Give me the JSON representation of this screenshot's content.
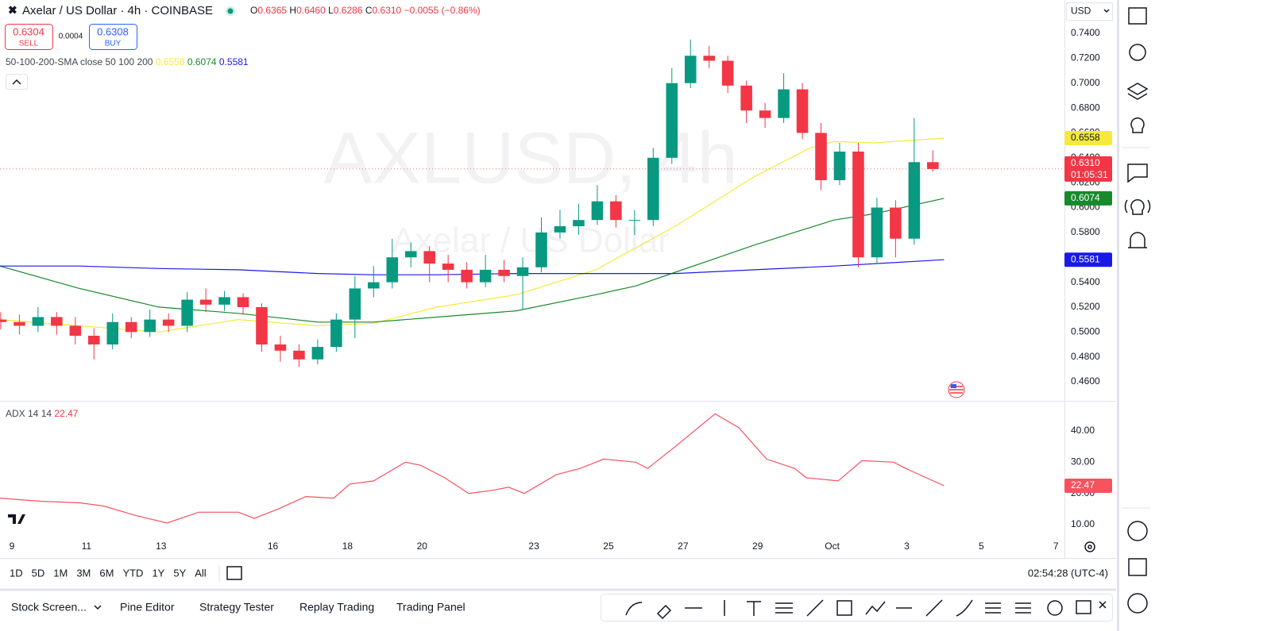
{
  "header": {
    "symbol": "Axelar / US Dollar · 4h · COINBASE",
    "ohlc": [
      {
        "key": "O",
        "value": "0.6365"
      },
      {
        "key": "H",
        "value": "0.6460"
      },
      {
        "key": "L",
        "value": "0.6286"
      },
      {
        "key": "C",
        "value": "0.6310"
      }
    ],
    "change": "−0.0055 (−0.86%)"
  },
  "trade": {
    "sell_price": "0.6304",
    "sell": "SELL",
    "spread": "0.0004",
    "buy_price": "0.6308",
    "buy": "BUY"
  },
  "currency": "USD",
  "watermark": {
    "ticker": "AXLUSD, 4h",
    "name": "Axelar / US Dollar"
  },
  "chart_data": [
    {
      "type": "candlestick",
      "x": [
        -0.3,
        0.2,
        0.7,
        1.2,
        1.7,
        2.2,
        2.7,
        3.2,
        3.7,
        4.2,
        4.7,
        5.2,
        5.7,
        6.2,
        6.7,
        7.2,
        7.7,
        8.2,
        8.7,
        9.2,
        9.7,
        10.2,
        10.7,
        11.2,
        11.7,
        12.2,
        12.7,
        13.2,
        13.7,
        14.2,
        14.7,
        15.2,
        15.7,
        16.2,
        16.7,
        17.2,
        17.7,
        18.2,
        18.7,
        19.2,
        19.7,
        20.2,
        20.7,
        21.2,
        21.7,
        22.2,
        22.7,
        23.2,
        23.7,
        24.2,
        24.7
      ],
      "open": [
        0.51,
        0.508,
        0.505,
        0.512,
        0.505,
        0.497,
        0.49,
        0.508,
        0.5,
        0.51,
        0.505,
        0.526,
        0.522,
        0.528,
        0.52,
        0.49,
        0.485,
        0.478,
        0.488,
        0.51,
        0.535,
        0.54,
        0.56,
        0.565,
        0.555,
        0.55,
        0.54,
        0.55,
        0.545,
        0.552,
        0.58,
        0.585,
        0.59,
        0.605,
        0.59,
        0.59,
        0.64,
        0.7,
        0.722,
        0.718,
        0.698,
        0.678,
        0.672,
        0.695,
        0.66,
        0.622,
        0.645,
        0.56,
        0.6,
        0.575,
        0.6365
      ],
      "high": [
        0.516,
        0.514,
        0.52,
        0.516,
        0.512,
        0.503,
        0.515,
        0.512,
        0.518,
        0.515,
        0.532,
        0.535,
        0.533,
        0.531,
        0.523,
        0.497,
        0.49,
        0.494,
        0.515,
        0.545,
        0.553,
        0.575,
        0.572,
        0.569,
        0.562,
        0.556,
        0.562,
        0.558,
        0.56,
        0.592,
        0.598,
        0.603,
        0.618,
        0.61,
        0.598,
        0.648,
        0.712,
        0.735,
        0.73,
        0.722,
        0.702,
        0.684,
        0.708,
        0.7,
        0.668,
        0.652,
        0.652,
        0.608,
        0.606,
        0.672,
        0.646
      ],
      "low": [
        0.502,
        0.498,
        0.5,
        0.498,
        0.49,
        0.478,
        0.486,
        0.495,
        0.496,
        0.5,
        0.5,
        0.516,
        0.517,
        0.514,
        0.484,
        0.476,
        0.472,
        0.474,
        0.484,
        0.495,
        0.528,
        0.535,
        0.552,
        0.54,
        0.54,
        0.535,
        0.536,
        0.54,
        0.518,
        0.548,
        0.575,
        0.578,
        0.586,
        0.584,
        0.578,
        0.585,
        0.635,
        0.696,
        0.712,
        0.692,
        0.668,
        0.664,
        0.668,
        0.655,
        0.614,
        0.618,
        0.552,
        0.555,
        0.56,
        0.57,
        0.6286
      ],
      "close": [
        0.508,
        0.505,
        0.512,
        0.505,
        0.497,
        0.49,
        0.508,
        0.5,
        0.51,
        0.505,
        0.526,
        0.522,
        0.528,
        0.52,
        0.49,
        0.485,
        0.478,
        0.488,
        0.51,
        0.535,
        0.54,
        0.56,
        0.565,
        0.555,
        0.55,
        0.54,
        0.55,
        0.545,
        0.552,
        0.58,
        0.585,
        0.59,
        0.605,
        0.59,
        0.59,
        0.64,
        0.7,
        0.722,
        0.718,
        0.698,
        0.678,
        0.672,
        0.695,
        0.66,
        0.622,
        0.645,
        0.56,
        0.6,
        0.575,
        0.6365,
        0.631
      ],
      "up_color": "#089981",
      "down_color": "#f23645",
      "last_price_label": "0.6310",
      "countdown": "01:05:31",
      "indicator": "50-100-200-SMA close 50 100 200",
      "series": [
        {
          "color": "#f5ea3b",
          "x": [
            -0.32,
            1.81,
            3.94,
            6.07,
            8.2,
            9.7,
            11.4,
            13.53,
            15.66,
            17.79,
            19.92,
            21.41,
            22.05,
            23.12,
            25.0
          ],
          "values": [
            0.51,
            0.505,
            0.5,
            0.51,
            0.505,
            0.507,
            0.52,
            0.53,
            0.55,
            0.585,
            0.625,
            0.648,
            0.653,
            0.652,
            0.6558
          ],
          "last_label": "0.6558"
        },
        {
          "color": "#178a2c",
          "x": [
            -0.32,
            1.81,
            3.94,
            6.07,
            8.2,
            9.7,
            11.4,
            13.53,
            15.66,
            16.73,
            17.79,
            19.92,
            22.05,
            23.12,
            24.18,
            25.0
          ],
          "values": [
            0.553,
            0.535,
            0.52,
            0.515,
            0.508,
            0.508,
            0.512,
            0.517,
            0.53,
            0.537,
            0.548,
            0.57,
            0.59,
            0.595,
            0.602,
            0.6074
          ],
          "last_label": "0.6074"
        },
        {
          "color": "#1a1ae6",
          "x": [
            -0.32,
            1.81,
            3.94,
            6.07,
            8.2,
            9.7,
            11.4,
            13.53,
            15.66,
            17.79,
            19.92,
            22.05,
            25.0
          ],
          "values": [
            0.553,
            0.553,
            0.551,
            0.55,
            0.547,
            0.546,
            0.546,
            0.547,
            0.547,
            0.547,
            0.55,
            0.553,
            0.5581
          ],
          "last_label": "0.5581"
        }
      ],
      "xlim": [
        -0.32,
        28.23
      ],
      "xticks": [
        {
          "value": 0,
          "label": "9"
        },
        {
          "value": 2,
          "label": "11"
        },
        {
          "value": 4,
          "label": "13"
        },
        {
          "value": 7,
          "label": "16"
        },
        {
          "value": 9,
          "label": "18"
        },
        {
          "value": 11,
          "label": "20"
        },
        {
          "value": 14,
          "label": "23"
        },
        {
          "value": 16,
          "label": "25"
        },
        {
          "value": 18,
          "label": "27"
        },
        {
          "value": 20,
          "label": "29"
        },
        {
          "value": 22,
          "label": "Oct"
        },
        {
          "value": 24,
          "label": "3"
        },
        {
          "value": 26,
          "label": "5"
        },
        {
          "value": 28,
          "label": "7"
        }
      ],
      "ylim": [
        0.4447,
        0.7668
      ],
      "yticks": [
        {
          "value": 0.46,
          "label": "0.4600"
        },
        {
          "value": 0.48,
          "label": "0.4800"
        },
        {
          "value": 0.5,
          "label": "0.5000"
        },
        {
          "value": 0.52,
          "label": "0.5200"
        },
        {
          "value": 0.54,
          "label": "0.5400"
        },
        {
          "value": 0.56,
          "label": "0.5600"
        },
        {
          "value": 0.58,
          "label": "0.5800"
        },
        {
          "value": 0.6,
          "label": "0.6000"
        },
        {
          "value": 0.62,
          "label": "0.6200"
        },
        {
          "value": 0.64,
          "label": "0.6400"
        },
        {
          "value": 0.66,
          "label": "0.6600"
        },
        {
          "value": 0.68,
          "label": "0.6800"
        },
        {
          "value": 0.7,
          "label": "0.7000"
        },
        {
          "value": 0.72,
          "label": "0.7200"
        },
        {
          "value": 0.74,
          "label": "0.7400"
        }
      ],
      "grid": false
    },
    {
      "type": "line",
      "indicator": "ADX 14 14",
      "series": [
        {
          "color": "#f7525f",
          "x": [
            -0.32,
            0.75,
            1.81,
            2.45,
            3.3,
            4.16,
            5.01,
            6.07,
            6.5,
            7.14,
            7.88,
            8.63,
            9.06,
            9.7,
            10.55,
            10.97,
            11.61,
            12.25,
            12.89,
            13.32,
            13.74,
            14.6,
            15.24,
            15.87,
            16.73,
            17.05,
            17.79,
            18.86,
            19.5,
            20.24,
            20.99,
            21.31,
            22.16,
            22.8,
            23.65,
            23.97,
            25.0
          ],
          "values": [
            18.5,
            17.5,
            17,
            16,
            13,
            10.5,
            14,
            14,
            12,
            15,
            19,
            18.5,
            23,
            24,
            30,
            29,
            25,
            20,
            21,
            22,
            20,
            26,
            28,
            31,
            30,
            28,
            35,
            45.5,
            41,
            31,
            28,
            25,
            24,
            30.5,
            30,
            28,
            22.47
          ],
          "last_label": "22.47"
        }
      ],
      "xlim": [
        -0.32,
        28.23
      ],
      "ylim": [
        5.68,
        49.15
      ],
      "yticks": [
        {
          "value": 10,
          "label": "10.00"
        },
        {
          "value": 20,
          "label": "20.00"
        },
        {
          "value": 30,
          "label": "30.00"
        },
        {
          "value": 40,
          "label": "40.00"
        }
      ],
      "grid": false
    }
  ],
  "timeframes": [
    "1D",
    "5D",
    "1M",
    "3M",
    "6M",
    "YTD",
    "1Y",
    "5Y",
    "All"
  ],
  "clock": "02:54:28 (UTC-4)",
  "tabs": [
    "Stock Screen...",
    "Pine Editor",
    "Strategy Tester",
    "Replay Trading",
    "Trading Panel"
  ]
}
